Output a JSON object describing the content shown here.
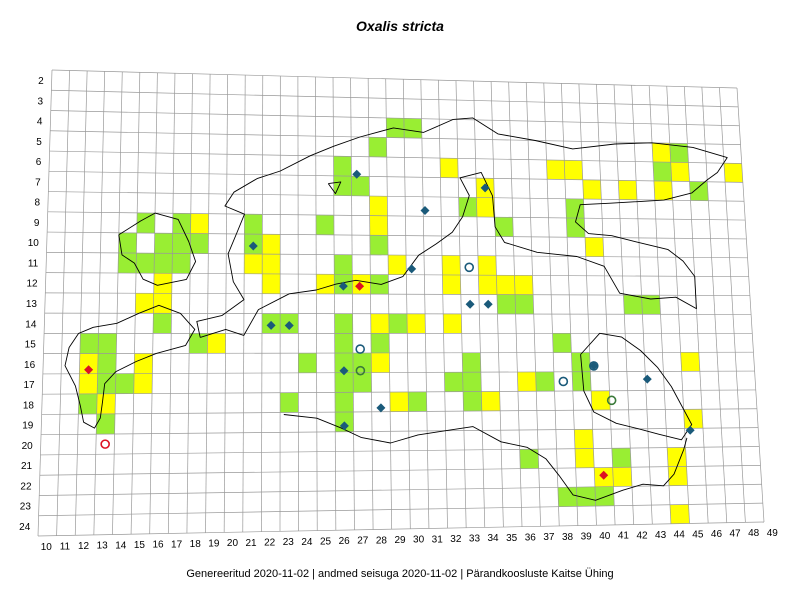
{
  "title": "Oxalis stricta",
  "footer": "Genereeritud 2020-11-02  |  andmed seisuga 2020-11-02  |  Pärandkoosluste Kaitse Ühing",
  "colors": {
    "grid": "#999999",
    "green_cell": "#99ee33",
    "yellow_cell": "#ffff00",
    "blue_marker": "#1a5a7a",
    "red_marker": "#dd1122",
    "outline": "#000000"
  },
  "axes": {
    "x_labels": [
      "10",
      "11",
      "12",
      "13",
      "14",
      "15",
      "16",
      "17",
      "18",
      "19",
      "20",
      "21",
      "22",
      "23",
      "24",
      "25",
      "26",
      "27",
      "28",
      "29",
      "30",
      "31",
      "32",
      "33",
      "34",
      "35",
      "36",
      "37",
      "38",
      "39",
      "40",
      "41",
      "42",
      "43",
      "44",
      "45",
      "46",
      "47",
      "48",
      "49"
    ],
    "y_labels": [
      "2",
      "3",
      "4",
      "5",
      "6",
      "7",
      "8",
      "9",
      "10",
      "11",
      "12",
      "13",
      "14",
      "15",
      "16",
      "17",
      "18",
      "19",
      "20",
      "21",
      "22",
      "23",
      "24"
    ]
  },
  "legend_categories": [
    "green",
    "yellow",
    "blue-diamond",
    "blue-circle",
    "red-diamond",
    "red-circle"
  ],
  "cells": [
    {
      "x": 12,
      "y": 15,
      "c": "green"
    },
    {
      "x": 13,
      "y": 15,
      "c": "green"
    },
    {
      "x": 12,
      "y": 16,
      "c": "yellow"
    },
    {
      "x": 13,
      "y": 16,
      "c": "green"
    },
    {
      "x": 12,
      "y": 17,
      "c": "yellow"
    },
    {
      "x": 13,
      "y": 17,
      "c": "green"
    },
    {
      "x": 12,
      "y": 18,
      "c": "green"
    },
    {
      "x": 13,
      "y": 18,
      "c": "yellow"
    },
    {
      "x": 13,
      "y": 19,
      "c": "green"
    },
    {
      "x": 14,
      "y": 17,
      "c": "green"
    },
    {
      "x": 15,
      "y": 16,
      "c": "yellow"
    },
    {
      "x": 15,
      "y": 17,
      "c": "yellow"
    },
    {
      "x": 14,
      "y": 10,
      "c": "green"
    },
    {
      "x": 14,
      "y": 11,
      "c": "green"
    },
    {
      "x": 15,
      "y": 9,
      "c": "green"
    },
    {
      "x": 15,
      "y": 11,
      "c": "green"
    },
    {
      "x": 15,
      "y": 13,
      "c": "yellow"
    },
    {
      "x": 16,
      "y": 13,
      "c": "yellow"
    },
    {
      "x": 16,
      "y": 10,
      "c": "green"
    },
    {
      "x": 16,
      "y": 11,
      "c": "green"
    },
    {
      "x": 16,
      "y": 12,
      "c": "yellow"
    },
    {
      "x": 16,
      "y": 14,
      "c": "green"
    },
    {
      "x": 17,
      "y": 9,
      "c": "green"
    },
    {
      "x": 17,
      "y": 10,
      "c": "green"
    },
    {
      "x": 17,
      "y": 11,
      "c": "green"
    },
    {
      "x": 18,
      "y": 9,
      "c": "yellow"
    },
    {
      "x": 18,
      "y": 10,
      "c": "green"
    },
    {
      "x": 18,
      "y": 15,
      "c": "green"
    },
    {
      "x": 19,
      "y": 15,
      "c": "yellow"
    },
    {
      "x": 21,
      "y": 9,
      "c": "green"
    },
    {
      "x": 21,
      "y": 10,
      "c": "green"
    },
    {
      "x": 21,
      "y": 11,
      "c": "yellow"
    },
    {
      "x": 22,
      "y": 10,
      "c": "yellow"
    },
    {
      "x": 22,
      "y": 11,
      "c": "yellow"
    },
    {
      "x": 22,
      "y": 12,
      "c": "yellow"
    },
    {
      "x": 22,
      "y": 14,
      "c": "green"
    },
    {
      "x": 23,
      "y": 14,
      "c": "green"
    },
    {
      "x": 24,
      "y": 16,
      "c": "green"
    },
    {
      "x": 23,
      "y": 18,
      "c": "green"
    },
    {
      "x": 25,
      "y": 9,
      "c": "green"
    },
    {
      "x": 25,
      "y": 12,
      "c": "yellow"
    },
    {
      "x": 26,
      "y": 12,
      "c": "green"
    },
    {
      "x": 26,
      "y": 11,
      "c": "green"
    },
    {
      "x": 26,
      "y": 14,
      "c": "green"
    },
    {
      "x": 26,
      "y": 15,
      "c": "green"
    },
    {
      "x": 26,
      "y": 16,
      "c": "green"
    },
    {
      "x": 26,
      "y": 17,
      "c": "green"
    },
    {
      "x": 26,
      "y": 18,
      "c": "green"
    },
    {
      "x": 26,
      "y": 19,
      "c": "green"
    },
    {
      "x": 26,
      "y": 6,
      "c": "green"
    },
    {
      "x": 26,
      "y": 7,
      "c": "green"
    },
    {
      "x": 27,
      "y": 7,
      "c": "green"
    },
    {
      "x": 27,
      "y": 12,
      "c": "yellow"
    },
    {
      "x": 27,
      "y": 16,
      "c": "green"
    },
    {
      "x": 27,
      "y": 17,
      "c": "green"
    },
    {
      "x": 28,
      "y": 8,
      "c": "yellow"
    },
    {
      "x": 28,
      "y": 9,
      "c": "yellow"
    },
    {
      "x": 28,
      "y": 10,
      "c": "green"
    },
    {
      "x": 28,
      "y": 12,
      "c": "green"
    },
    {
      "x": 28,
      "y": 14,
      "c": "yellow"
    },
    {
      "x": 28,
      "y": 15,
      "c": "green"
    },
    {
      "x": 28,
      "y": 16,
      "c": "yellow"
    },
    {
      "x": 29,
      "y": 11,
      "c": "yellow"
    },
    {
      "x": 29,
      "y": 14,
      "c": "green"
    },
    {
      "x": 29,
      "y": 18,
      "c": "yellow"
    },
    {
      "x": 30,
      "y": 18,
      "c": "green"
    },
    {
      "x": 30,
      "y": 14,
      "c": "yellow"
    },
    {
      "x": 28,
      "y": 5,
      "c": "green"
    },
    {
      "x": 29,
      "y": 4,
      "c": "green"
    },
    {
      "x": 30,
      "y": 4,
      "c": "green"
    },
    {
      "x": 32,
      "y": 6,
      "c": "yellow"
    },
    {
      "x": 32,
      "y": 11,
      "c": "yellow"
    },
    {
      "x": 32,
      "y": 12,
      "c": "yellow"
    },
    {
      "x": 32,
      "y": 14,
      "c": "yellow"
    },
    {
      "x": 32,
      "y": 17,
      "c": "green"
    },
    {
      "x": 33,
      "y": 8,
      "c": "green"
    },
    {
      "x": 33,
      "y": 16,
      "c": "green"
    },
    {
      "x": 33,
      "y": 17,
      "c": "green"
    },
    {
      "x": 33,
      "y": 18,
      "c": "green"
    },
    {
      "x": 34,
      "y": 7,
      "c": "yellow"
    },
    {
      "x": 34,
      "y": 8,
      "c": "yellow"
    },
    {
      "x": 34,
      "y": 12,
      "c": "yellow"
    },
    {
      "x": 34,
      "y": 18,
      "c": "yellow"
    },
    {
      "x": 34,
      "y": 11,
      "c": "yellow"
    },
    {
      "x": 35,
      "y": 9,
      "c": "green"
    },
    {
      "x": 35,
      "y": 12,
      "c": "yellow"
    },
    {
      "x": 35,
      "y": 13,
      "c": "green"
    },
    {
      "x": 36,
      "y": 12,
      "c": "yellow"
    },
    {
      "x": 36,
      "y": 13,
      "c": "green"
    },
    {
      "x": 36,
      "y": 17,
      "c": "yellow"
    },
    {
      "x": 36,
      "y": 21,
      "c": "green"
    },
    {
      "x": 37,
      "y": 17,
      "c": "green"
    },
    {
      "x": 38,
      "y": 15,
      "c": "green"
    },
    {
      "x": 38,
      "y": 23,
      "c": "green"
    },
    {
      "x": 39,
      "y": 8,
      "c": "green"
    },
    {
      "x": 39,
      "y": 9,
      "c": "green"
    },
    {
      "x": 39,
      "y": 16,
      "c": "green"
    },
    {
      "x": 39,
      "y": 17,
      "c": "green"
    },
    {
      "x": 39,
      "y": 20,
      "c": "yellow"
    },
    {
      "x": 39,
      "y": 21,
      "c": "yellow"
    },
    {
      "x": 39,
      "y": 23,
      "c": "green"
    },
    {
      "x": 40,
      "y": 7,
      "c": "yellow"
    },
    {
      "x": 40,
      "y": 10,
      "c": "yellow"
    },
    {
      "x": 40,
      "y": 18,
      "c": "yellow"
    },
    {
      "x": 40,
      "y": 22,
      "c": "yellow"
    },
    {
      "x": 40,
      "y": 23,
      "c": "green"
    },
    {
      "x": 41,
      "y": 21,
      "c": "green"
    },
    {
      "x": 41,
      "y": 22,
      "c": "yellow"
    },
    {
      "x": 38,
      "y": 6,
      "c": "yellow"
    },
    {
      "x": 39,
      "y": 6,
      "c": "yellow"
    },
    {
      "x": 42,
      "y": 7,
      "c": "yellow"
    },
    {
      "x": 42,
      "y": 13,
      "c": "green"
    },
    {
      "x": 43,
      "y": 13,
      "c": "green"
    },
    {
      "x": 44,
      "y": 5,
      "c": "yellow"
    },
    {
      "x": 44,
      "y": 6,
      "c": "green"
    },
    {
      "x": 44,
      "y": 7,
      "c": "yellow"
    },
    {
      "x": 45,
      "y": 5,
      "c": "green"
    },
    {
      "x": 45,
      "y": 6,
      "c": "yellow"
    },
    {
      "x": 45,
      "y": 16,
      "c": "yellow"
    },
    {
      "x": 45,
      "y": 19,
      "c": "yellow"
    },
    {
      "x": 44,
      "y": 21,
      "c": "yellow"
    },
    {
      "x": 44,
      "y": 22,
      "c": "yellow"
    },
    {
      "x": 44,
      "y": 24,
      "c": "yellow"
    },
    {
      "x": 46,
      "y": 7,
      "c": "green"
    },
    {
      "x": 48,
      "y": 6,
      "c": "yellow"
    }
  ],
  "markers": [
    {
      "x": 26.8,
      "y": 6.4,
      "t": "blue-diamond"
    },
    {
      "x": 30.6,
      "y": 8.2,
      "t": "blue-diamond"
    },
    {
      "x": 34.0,
      "y": 7.0,
      "t": "blue-diamond"
    },
    {
      "x": 21.0,
      "y": 10.1,
      "t": "blue-diamond"
    },
    {
      "x": 29.8,
      "y": 11.2,
      "t": "blue-diamond"
    },
    {
      "x": 33.0,
      "y": 11.1,
      "t": "blue-circle"
    },
    {
      "x": 26.0,
      "y": 12.1,
      "t": "blue-diamond"
    },
    {
      "x": 26.9,
      "y": 12.1,
      "t": "red-diamond"
    },
    {
      "x": 33.0,
      "y": 13.0,
      "t": "blue-diamond"
    },
    {
      "x": 34.0,
      "y": 13.0,
      "t": "blue-diamond"
    },
    {
      "x": 22.0,
      "y": 14.1,
      "t": "blue-diamond"
    },
    {
      "x": 23.0,
      "y": 14.1,
      "t": "blue-diamond"
    },
    {
      "x": 26.9,
      "y": 15.3,
      "t": "blue-circle"
    },
    {
      "x": 12.0,
      "y": 16.3,
      "t": "red-diamond"
    },
    {
      "x": 26.0,
      "y": 16.4,
      "t": "blue-diamond"
    },
    {
      "x": 26.9,
      "y": 16.4,
      "t": "green-circle"
    },
    {
      "x": 38.0,
      "y": 17.0,
      "t": "blue-circle"
    },
    {
      "x": 39.7,
      "y": 16.2,
      "t": "blue-circle"
    },
    {
      "x": 39.7,
      "y": 16.2,
      "t": "blue-diamond"
    },
    {
      "x": 42.6,
      "y": 16.9,
      "t": "blue-diamond"
    },
    {
      "x": 40.6,
      "y": 18.0,
      "t": "green-circle"
    },
    {
      "x": 28.0,
      "y": 18.3,
      "t": "blue-diamond"
    },
    {
      "x": 26.0,
      "y": 19.2,
      "t": "blue-diamond"
    },
    {
      "x": 44.8,
      "y": 19.6,
      "t": "blue-diamond"
    },
    {
      "x": 13.0,
      "y": 20.0,
      "t": "red-circle"
    },
    {
      "x": 40.0,
      "y": 21.9,
      "t": "red-diamond"
    }
  ],
  "outlines": {
    "mainland": [
      [
        18.6,
        15.2
      ],
      [
        20.0,
        14.8
      ],
      [
        21.0,
        15.1
      ],
      [
        21.8,
        13.8
      ],
      [
        23.5,
        13.0
      ],
      [
        25.0,
        12.8
      ],
      [
        26.1,
        12.5
      ],
      [
        27.2,
        12.3
      ],
      [
        28.6,
        12.5
      ],
      [
        29.8,
        12.1
      ],
      [
        30.7,
        11.0
      ],
      [
        31.7,
        10.4
      ],
      [
        32.6,
        9.8
      ],
      [
        33.2,
        9.0
      ],
      [
        33.6,
        7.9
      ],
      [
        33.1,
        7.0
      ],
      [
        34.3,
        6.7
      ],
      [
        34.9,
        7.9
      ],
      [
        35.0,
        9.5
      ],
      [
        35.5,
        10.3
      ],
      [
        37.3,
        10.8
      ],
      [
        39.5,
        11.0
      ],
      [
        41.0,
        11.5
      ],
      [
        41.8,
        12.9
      ],
      [
        43.5,
        13.2
      ],
      [
        44.9,
        13.1
      ],
      [
        46.0,
        13.7
      ],
      [
        46.0,
        12.0
      ],
      [
        45.4,
        11.2
      ],
      [
        44.6,
        10.6
      ],
      [
        42.8,
        10.2
      ],
      [
        41.5,
        9.9
      ],
      [
        40.2,
        9.8
      ],
      [
        39.5,
        9.2
      ],
      [
        39.8,
        8.3
      ],
      [
        41.5,
        8.2
      ],
      [
        44.5,
        8.0
      ],
      [
        46.1,
        7.6
      ],
      [
        47.0,
        6.9
      ],
      [
        47.6,
        6.5
      ],
      [
        48.2,
        5.7
      ],
      [
        46.3,
        5.2
      ],
      [
        44.0,
        5.0
      ],
      [
        41.9,
        5.1
      ],
      [
        39.5,
        5.4
      ],
      [
        37.4,
        5.0
      ],
      [
        35.3,
        4.7
      ],
      [
        33.9,
        3.9
      ],
      [
        32.8,
        4.0
      ],
      [
        31.1,
        4.7
      ],
      [
        29.4,
        4.5
      ],
      [
        27.5,
        5.0
      ],
      [
        26.0,
        5.5
      ],
      [
        24.7,
        6.0
      ],
      [
        23.0,
        6.8
      ],
      [
        21.7,
        7.2
      ],
      [
        20.4,
        7.9
      ],
      [
        19.9,
        8.6
      ],
      [
        21.0,
        9.0
      ],
      [
        20.6,
        9.9
      ],
      [
        20.1,
        11.0
      ],
      [
        20.4,
        12.4
      ],
      [
        21.0,
        13.3
      ],
      [
        19.8,
        14.1
      ],
      [
        18.4,
        14.4
      ],
      [
        18.6,
        15.2
      ]
    ],
    "saaremaa": [
      [
        11.9,
        15.0
      ],
      [
        12.7,
        14.7
      ],
      [
        14.0,
        14.5
      ],
      [
        15.2,
        14.0
      ],
      [
        16.3,
        13.6
      ],
      [
        17.5,
        14.0
      ],
      [
        18.3,
        14.8
      ],
      [
        17.8,
        15.6
      ],
      [
        16.2,
        16.0
      ],
      [
        15.1,
        16.4
      ],
      [
        14.0,
        16.9
      ],
      [
        13.4,
        17.5
      ],
      [
        13.3,
        18.4
      ],
      [
        13.2,
        19.2
      ],
      [
        12.9,
        19.7
      ],
      [
        12.3,
        19.4
      ],
      [
        12.1,
        18.6
      ],
      [
        11.8,
        17.6
      ],
      [
        11.2,
        16.6
      ],
      [
        11.4,
        15.7
      ],
      [
        11.9,
        15.0
      ]
    ],
    "hiiumaa": [
      [
        14.0,
        10.1
      ],
      [
        15.2,
        9.4
      ],
      [
        16.0,
        9.0
      ],
      [
        17.3,
        9.3
      ],
      [
        17.9,
        10.4
      ],
      [
        18.3,
        11.4
      ],
      [
        17.8,
        12.3
      ],
      [
        16.2,
        12.6
      ],
      [
        15.4,
        12.3
      ],
      [
        14.9,
        11.5
      ],
      [
        14.2,
        11.1
      ],
      [
        14.0,
        10.1
      ]
    ],
    "lake_peipus": [
      [
        39.5,
        16.1
      ],
      [
        40.6,
        15.0
      ],
      [
        41.8,
        15.2
      ],
      [
        42.8,
        15.9
      ],
      [
        43.7,
        16.8
      ],
      [
        44.4,
        17.8
      ],
      [
        44.9,
        18.8
      ],
      [
        45.4,
        19.8
      ],
      [
        44.8,
        20.6
      ],
      [
        43.6,
        20.3
      ],
      [
        42.5,
        20.0
      ],
      [
        41.3,
        19.7
      ],
      [
        40.1,
        19.1
      ],
      [
        39.6,
        18.0
      ],
      [
        39.5,
        16.1
      ]
    ],
    "southern_border": [
      [
        23.2,
        19.1
      ],
      [
        25.0,
        19.3
      ],
      [
        26.3,
        19.8
      ],
      [
        27.4,
        20.3
      ],
      [
        29.0,
        20.6
      ],
      [
        30.5,
        20.2
      ],
      [
        32.0,
        20.0
      ],
      [
        33.5,
        19.8
      ],
      [
        35.0,
        20.6
      ],
      [
        36.4,
        20.9
      ],
      [
        37.4,
        21.5
      ],
      [
        38.1,
        22.4
      ],
      [
        38.8,
        23.4
      ],
      [
        40.0,
        23.7
      ],
      [
        41.5,
        23.2
      ],
      [
        42.6,
        22.9
      ],
      [
        43.7,
        23.0
      ],
      [
        44.3,
        22.4
      ],
      [
        44.9,
        21.1
      ],
      [
        45.1,
        20.5
      ]
    ],
    "islet": [
      [
        25.7,
        7.4
      ],
      [
        26.4,
        7.3
      ],
      [
        26.1,
        7.9
      ],
      [
        25.7,
        7.4
      ]
    ]
  }
}
